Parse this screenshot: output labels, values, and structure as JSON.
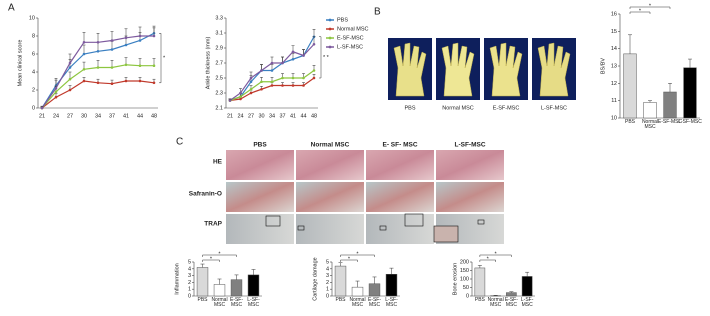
{
  "figure": {
    "panel_labels": [
      "A",
      "B",
      "C"
    ],
    "render_labels": [
      "PBS",
      "Normal MSC",
      "E-SF-MSC",
      "L-SF-MSC"
    ],
    "histology_columns": [
      "PBS",
      "Normal MSC",
      "E- SF- MSC",
      "L-SF-MSC"
    ],
    "histology_rows": [
      "HE",
      "Safranin-O",
      "TRAP"
    ]
  },
  "chart_data": [
    {
      "type": "line",
      "y_label": "Mean clinical score",
      "categories": [
        "21",
        "24",
        "27",
        "30",
        "34",
        "37",
        "41",
        "44",
        "48"
      ],
      "series": [
        {
          "color": "#3a7fc1",
          "values": [
            0,
            2.5,
            4.5,
            6,
            6.3,
            6.5,
            7,
            7.5,
            8.3
          ],
          "errors": [
            0.2,
            0.8,
            0.9,
            1,
            1,
            0.9,
            1,
            0.9,
            0.8
          ]
        },
        {
          "color": "#c0392b",
          "values": [
            0,
            1.2,
            2,
            3,
            2.8,
            2.7,
            3,
            3,
            2.8
          ],
          "errors": [
            0.1,
            0.4,
            0.5,
            0.4,
            0.4,
            0.4,
            0.4,
            0.4,
            0.4
          ]
        },
        {
          "color": "#8dc63f",
          "values": [
            0,
            1.8,
            3.2,
            4.3,
            4.5,
            4.5,
            4.8,
            4.7,
            4.7
          ],
          "errors": [
            0.1,
            0.6,
            0.8,
            0.8,
            0.8,
            0.8,
            0.8,
            0.8,
            0.8
          ]
        },
        {
          "color": "#7d5a9e",
          "values": [
            0,
            2.2,
            5,
            7.3,
            7.3,
            7.5,
            7.8,
            8,
            8
          ],
          "errors": [
            0.2,
            0.9,
            1,
            1.1,
            1,
            1,
            1,
            1,
            0.9
          ]
        }
      ],
      "ylim": [
        0,
        10
      ],
      "yticks": [
        0,
        2,
        4,
        6,
        8,
        10
      ],
      "legend": false,
      "annotations": [
        "*"
      ]
    },
    {
      "type": "line",
      "y_label": "Ankle thickness (mm)",
      "categories": [
        "21",
        "24",
        "27",
        "30",
        "34",
        "37",
        "41",
        "44",
        "48"
      ],
      "series": [
        {
          "name": "PBS",
          "color": "#3a7fc1",
          "values": [
            2.2,
            2.25,
            2.45,
            2.6,
            2.6,
            2.7,
            2.75,
            2.8,
            3.05
          ],
          "errors": [
            0.02,
            0.05,
            0.08,
            0.08,
            0.08,
            0.08,
            0.08,
            0.08,
            0.1
          ]
        },
        {
          "name": "Normal MSC",
          "color": "#c0392b",
          "values": [
            2.2,
            2.22,
            2.3,
            2.35,
            2.4,
            2.4,
            2.4,
            2.4,
            2.5
          ],
          "errors": [
            0.02,
            0.03,
            0.04,
            0.04,
            0.04,
            0.04,
            0.04,
            0.04,
            0.05
          ]
        },
        {
          "name": "E-SF-MSC",
          "color": "#8dc63f",
          "values": [
            2.2,
            2.25,
            2.35,
            2.45,
            2.45,
            2.5,
            2.5,
            2.5,
            2.6
          ],
          "errors": [
            0.02,
            0.04,
            0.05,
            0.06,
            0.06,
            0.06,
            0.06,
            0.06,
            0.07
          ]
        },
        {
          "name": "L-SF-MSC",
          "color": "#7d5a9e",
          "values": [
            2.2,
            2.3,
            2.5,
            2.6,
            2.7,
            2.7,
            2.85,
            2.8,
            2.95
          ],
          "errors": [
            0.02,
            0.06,
            0.08,
            0.08,
            0.08,
            0.08,
            0.08,
            0.08,
            0.1
          ]
        }
      ],
      "ylim": [
        2.1,
        3.3
      ],
      "yticks": [
        2.1,
        2.3,
        2.5,
        2.7,
        2.9,
        3.1,
        3.3
      ],
      "legend": "right",
      "annotations": [
        "* *"
      ]
    },
    {
      "type": "bar",
      "y_label": "BS/BV",
      "categories": [
        "PBS",
        "Normal MSC",
        "E-SF-MSC",
        "L-SF-MSC"
      ],
      "values": [
        13.7,
        10.9,
        11.5,
        12.9
      ],
      "errors": [
        1.1,
        0.1,
        0.5,
        0.5
      ],
      "colors": [
        "#d9d9d9",
        "#ffffff",
        "#808080",
        "#000000"
      ],
      "ylim": [
        10,
        16
      ],
      "yticks": [
        10,
        11,
        12,
        13,
        14,
        15,
        16
      ],
      "annotations": [
        "*",
        "*"
      ]
    },
    {
      "type": "bar",
      "y_label": "Inflammation",
      "categories": [
        "PBS",
        "Normal MSC",
        "E-SF-MSC",
        "L-SF-MSC"
      ],
      "values": [
        4.2,
        1.7,
        2.4,
        3.1
      ],
      "errors": [
        0.5,
        0.8,
        0.7,
        0.8
      ],
      "colors": [
        "#d9d9d9",
        "#ffffff",
        "#808080",
        "#000000"
      ],
      "ylim": [
        0,
        5
      ],
      "yticks": [
        0,
        1,
        2,
        3,
        4,
        5
      ],
      "annotations": [
        "*",
        "*"
      ]
    },
    {
      "type": "bar",
      "y_label": "Cartilage damage",
      "categories": [
        "PBS",
        "Normal MSC",
        "E-SF-MSC",
        "L-SF-MSC"
      ],
      "values": [
        4.4,
        1.3,
        1.8,
        3.2
      ],
      "errors": [
        0.5,
        0.9,
        1,
        0.9
      ],
      "colors": [
        "#d9d9d9",
        "#ffffff",
        "#808080",
        "#000000"
      ],
      "ylim": [
        0,
        5
      ],
      "yticks": [
        0,
        1,
        2,
        3,
        4,
        5
      ],
      "annotations": [
        "*",
        "*"
      ]
    },
    {
      "type": "bar",
      "y_label": "Bone erosion",
      "categories": [
        "PBS",
        "Normal MSC",
        "E-SF-MSC",
        "L-SF-MSC"
      ],
      "values": [
        165,
        2,
        20,
        115
      ],
      "errors": [
        15,
        2,
        5,
        25
      ],
      "colors": [
        "#d9d9d9",
        "#ffffff",
        "#808080",
        "#000000"
      ],
      "ylim": [
        0,
        200
      ],
      "yticks": [
        0,
        50,
        100,
        150,
        200
      ],
      "annotations": [
        "*",
        "*"
      ]
    }
  ]
}
